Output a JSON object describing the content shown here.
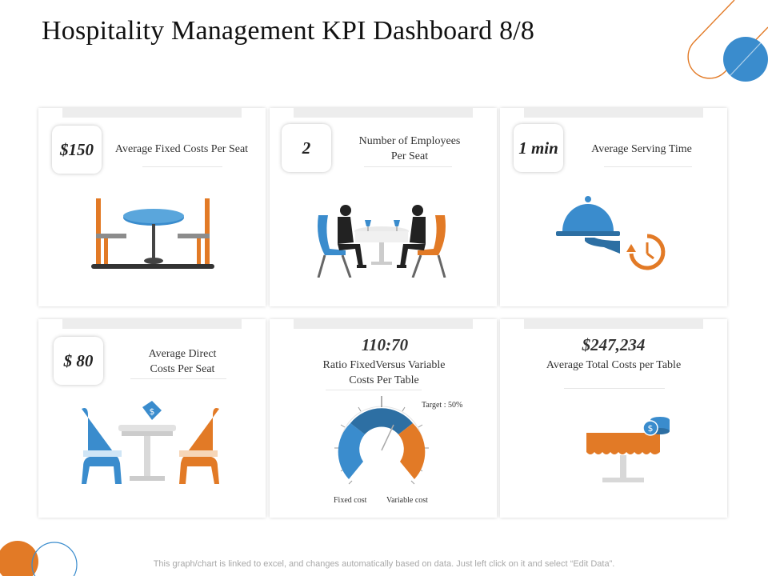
{
  "title": "Hospitality Management KPI Dashboard 8/8",
  "kpis": {
    "fixed_cost_seat": {
      "value": "$150",
      "label": "Average Fixed Costs Per Seat"
    },
    "employees_seat": {
      "value": "2",
      "label_line1": "Number of Employees",
      "label_line2": "Per Seat"
    },
    "serving_time": {
      "value": "1 min",
      "label": "Average Serving Time"
    },
    "direct_cost_seat": {
      "value": "$ 80",
      "label_line1": "Average Direct",
      "label_line2": "Costs Per Seat"
    },
    "ratio": {
      "value": "110:70",
      "label_line1": "Ratio FixedVersus Variable",
      "label_line2": "Costs Per Table",
      "target_label": "Target : 50%",
      "legend_fixed": "Fixed cost",
      "legend_variable": "Variable cost"
    },
    "total_cost_table": {
      "value": "$247,234",
      "label": "Average Total Costs per Table"
    }
  },
  "colors": {
    "blue": "#3a8ccd",
    "orange": "#e27a26",
    "dark_blue": "#2d6fa3",
    "grey": "#d8d8d8"
  },
  "footer": "This graph/chart is linked to excel, and changes automatically based on data. Just left click on it and select “Edit Data”."
}
